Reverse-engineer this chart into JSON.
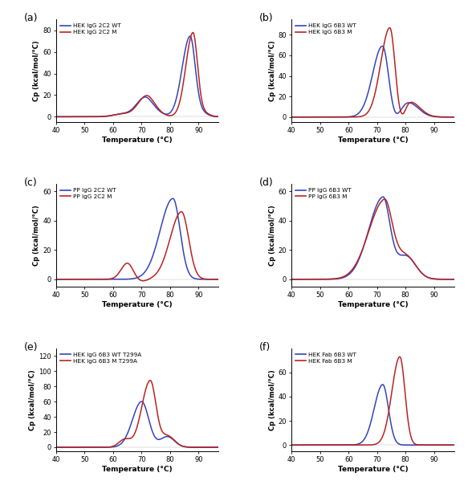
{
  "panels": [
    {
      "label": "(a)",
      "legend": [
        "HEK IgG 2C2 WT",
        "HEK IgG 2C2 M"
      ],
      "ylim": [
        -5,
        90
      ],
      "yticks": [
        0,
        20,
        40,
        60,
        80
      ],
      "wt_color": "#3344BB",
      "mut_color": "#BB2222"
    },
    {
      "label": "(b)",
      "legend": [
        "HEK IgG 6B3 WT",
        "HEK IgG 6B3 M"
      ],
      "ylim": [
        -5,
        95
      ],
      "yticks": [
        0,
        20,
        40,
        60,
        80
      ],
      "wt_color": "#3344BB",
      "mut_color": "#BB2222"
    },
    {
      "label": "(c)",
      "legend": [
        "PP IgG 2C2 WT",
        "PP IgG 2C2 M"
      ],
      "ylim": [
        -5,
        65
      ],
      "yticks": [
        0,
        20,
        40,
        60
      ],
      "wt_color": "#3344BB",
      "mut_color": "#BB2222"
    },
    {
      "label": "(d)",
      "legend": [
        "PP IgG 6B3 WT",
        "PP IgG 6B3 M"
      ],
      "ylim": [
        -5,
        65
      ],
      "yticks": [
        0,
        20,
        40,
        60
      ],
      "wt_color": "#3344BB",
      "mut_color": "#BB2222"
    },
    {
      "label": "(e)",
      "legend": [
        "HEK IgG 6B3 WT T299A",
        "HEK IgG 6B3 M T299A"
      ],
      "ylim": [
        -5,
        130
      ],
      "yticks": [
        0,
        20,
        40,
        60,
        80,
        100,
        120
      ],
      "wt_color": "#3344BB",
      "mut_color": "#BB2222"
    },
    {
      "label": "(f)",
      "legend": [
        "HEK Fab 6B3 WT",
        "HEK Fab 6B3 M"
      ],
      "ylim": [
        -5,
        80
      ],
      "yticks": [
        0,
        20,
        40,
        60
      ],
      "wt_color": "#3344BB",
      "mut_color": "#BB2222"
    }
  ],
  "xlabel": "Temperature (°C)",
  "ylabel": "Cp (kcal/mol/°C)",
  "xrange": [
    40,
    97
  ],
  "xticks": [
    40,
    50,
    60,
    70,
    80,
    90
  ]
}
